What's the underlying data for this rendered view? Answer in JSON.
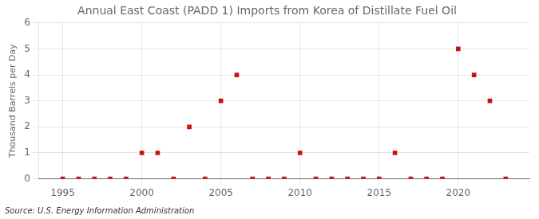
{
  "chart_data": {
    "type": "scatter",
    "title": "Annual East Coast (PADD 1) Imports from Korea of Distillate Fuel Oil",
    "ylabel": "Thousand Barrels per Day",
    "source": "Source: U.S. Energy Information Administration",
    "x": [
      1995,
      1996,
      1997,
      1998,
      1999,
      2000,
      2001,
      2002,
      2003,
      2004,
      2005,
      2006,
      2007,
      2008,
      2009,
      2010,
      2011,
      2012,
      2013,
      2014,
      2015,
      2016,
      2017,
      2018,
      2019,
      2020,
      2021,
      2022,
      2023
    ],
    "values": [
      0,
      0,
      0,
      0,
      0,
      1,
      1,
      0,
      2,
      0,
      3,
      4,
      0,
      0,
      0,
      1,
      0,
      0,
      0,
      0,
      0,
      1,
      0,
      0,
      0,
      5,
      4,
      3,
      0
    ],
    "color": "#cc1111",
    "marker": "square",
    "xlim": [
      1993.5,
      2024.5
    ],
    "xticks": [
      1995,
      2000,
      2005,
      2010,
      2015,
      2020
    ],
    "ylim": [
      0,
      6
    ],
    "yticks": [
      0,
      1,
      2,
      3,
      4,
      5,
      6
    ],
    "grid": true
  }
}
